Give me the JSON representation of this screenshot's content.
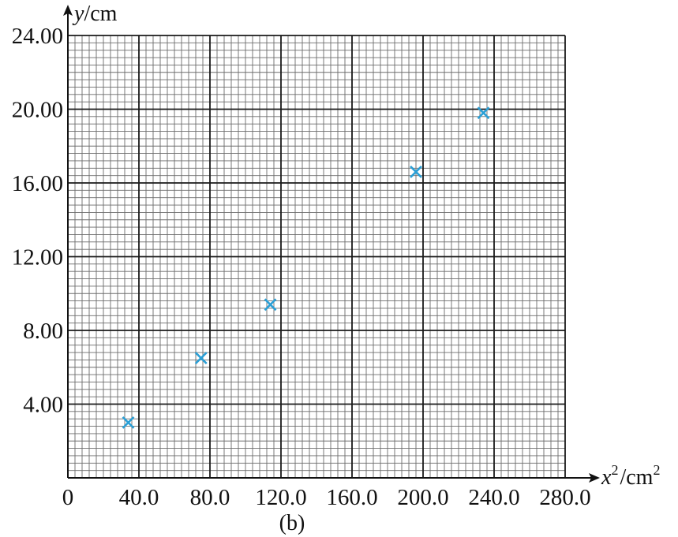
{
  "chart_data": {
    "type": "scatter",
    "caption": "(b)",
    "xlabel": {
      "var": "x",
      "sup": "2",
      "unit": "/cm",
      "unit_sup": "2"
    },
    "ylabel": {
      "var": "y",
      "unit": "/cm"
    },
    "xlim": [
      0,
      280
    ],
    "ylim": [
      0,
      24
    ],
    "grid": true,
    "xticks": [
      0,
      40,
      80,
      120,
      160,
      200,
      240,
      280
    ],
    "xtick_labels": [
      "0",
      "40.0",
      "80.0",
      "120.0",
      "160.0",
      "200.0",
      "240.0",
      "280.0"
    ],
    "yticks": [
      4,
      8,
      12,
      16,
      20,
      24
    ],
    "ytick_labels": [
      "4.00",
      "8.00",
      "12.00",
      "16.00",
      "20.00",
      "24.00"
    ],
    "marker": "x",
    "colors": {
      "marker": "#2a9fd6",
      "grid_major": "#1a1a1a",
      "grid_minor": "#6b6b6b"
    },
    "points": [
      {
        "x": 34,
        "y": 3.0
      },
      {
        "x": 75,
        "y": 6.5
      },
      {
        "x": 114,
        "y": 9.4
      },
      {
        "x": 196,
        "y": 16.6
      },
      {
        "x": 234,
        "y": 19.8
      }
    ]
  }
}
